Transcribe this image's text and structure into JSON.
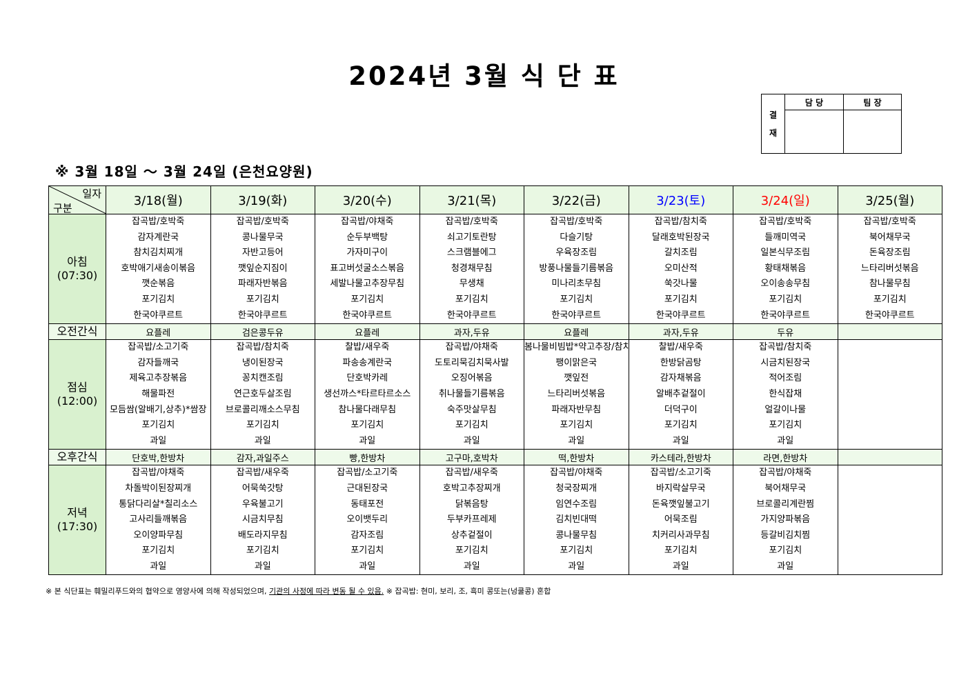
{
  "title": "2024년 3월 식 단 표",
  "approval": {
    "label": [
      "결",
      "재"
    ],
    "headers": [
      "담 당",
      "팀 장"
    ]
  },
  "subtitle": "※ 3월 18일 ～ 3월 24일 (은천요양원)",
  "corner": {
    "top": "일자",
    "bottom": "구분"
  },
  "colors": {
    "saturday": "#0000ff",
    "sunday": "#ff0000",
    "header_bg": "#e9f8e3",
    "label_bg": "#d9f1cf"
  },
  "days": [
    {
      "label": "3/18(월)",
      "type": "weekday"
    },
    {
      "label": "3/19(화)",
      "type": "weekday"
    },
    {
      "label": "3/20(수)",
      "type": "weekday"
    },
    {
      "label": "3/21(목)",
      "type": "weekday"
    },
    {
      "label": "3/22(금)",
      "type": "weekday"
    },
    {
      "label": "3/23(토)",
      "type": "saturday"
    },
    {
      "label": "3/24(일)",
      "type": "sunday"
    },
    {
      "label": "3/25(월)",
      "type": "weekday"
    }
  ],
  "meals": [
    {
      "label": "아침",
      "time": "(07:30)",
      "kind": "meal",
      "menus": [
        [
          "잡곡밥/호박죽",
          "감자계란국",
          "참치김치찌개",
          "호박애기새송이볶음",
          "깻순볶음",
          "포기김치",
          "한국야쿠르트"
        ],
        [
          "잡곡밥/호박죽",
          "콩나물무국",
          "자반고등어",
          "깻잎순지짐이",
          "파래자반볶음",
          "포기김치",
          "한국야쿠르트"
        ],
        [
          "잡곡밥/야채죽",
          "순두부백탕",
          "가자미구이",
          "표고버섯굴소스볶음",
          "세발나물고추장무침",
          "포기김치",
          "한국야쿠르트"
        ],
        [
          "잡곡밥/호박죽",
          "쇠고기토란탕",
          "스크램블에그",
          "청경채무침",
          "무생채",
          "포기김치",
          "한국야쿠르트"
        ],
        [
          "잡곡밥/호박죽",
          "다슬기탕",
          "우육장조림",
          "방풍나물들기름볶음",
          "미나리초무침",
          "포기김치",
          "한국야쿠르트"
        ],
        [
          "잡곡밥/참치죽",
          "달래호박된장국",
          "갈치조림",
          "오미산적",
          "쑥갓나물",
          "포기김치",
          "한국야쿠르트"
        ],
        [
          "잡곡밥/호박죽",
          "들깨미역국",
          "일본식무조림",
          "황태채볶음",
          "오이송송무침",
          "포기김치",
          "한국야쿠르트"
        ],
        [
          "잡곡밥/호박죽",
          "북어채무국",
          "돈육장조림",
          "느타리버섯볶음",
          "참나물무침",
          "포기김치",
          "한국야쿠르트"
        ]
      ]
    },
    {
      "label": "오전간식",
      "kind": "snack",
      "menus": [
        "요플레",
        "검은콩두유",
        "요플레",
        "과자,두유",
        "요플레",
        "과자,두유",
        "두유",
        ""
      ]
    },
    {
      "label": "점심",
      "time": "(12:00)",
      "kind": "meal",
      "menus": [
        [
          "잡곡밥/소고기죽",
          "감자들깨국",
          "제육고추장볶음",
          "해물파전",
          "모듬쌈(알배기,상추)*쌈장",
          "포기김치",
          "과일"
        ],
        [
          "잡곡밥/참치죽",
          "냉이된장국",
          "꽁치캔조림",
          "연근호두살조림",
          "브로콜리깨소스무침",
          "포기김치",
          "과일"
        ],
        [
          "찰밥/새우죽",
          "파송송계란국",
          "단호박카레",
          "생선까스*타르타르소스",
          "참나물다래무침",
          "포기김치",
          "과일"
        ],
        [
          "잡곡밥/야채죽",
          "도토리묵김치묵사발",
          "오징어볶음",
          "취나물들기름볶음",
          "숙주맛살무침",
          "포기김치",
          "과일"
        ],
        [
          "봄나물비빔밥*약고추장/참치죽",
          "팽이맑은국",
          "깻잎전",
          "느타리버섯볶음",
          "파래자반무침",
          "포기김치",
          "과일"
        ],
        [
          "찰밥/새우죽",
          "한방닭곰탕",
          "감자채볶음",
          "알배추겉절이",
          "더덕구이",
          "포기김치",
          "과일"
        ],
        [
          "잡곡밥/참치죽",
          "시금치된장국",
          "적어조림",
          "한식잡채",
          "얼갈이나물",
          "포기김치",
          "과일"
        ],
        []
      ]
    },
    {
      "label": "오후간식",
      "kind": "snack",
      "menus": [
        "단호박,한방차",
        "감자,과일주스",
        "빵,한방차",
        "고구마,호박차",
        "떡,한방차",
        "카스테라,한방차",
        "라면,한방차",
        ""
      ]
    },
    {
      "label": "저녁",
      "time": "(17:30)",
      "kind": "meal",
      "menus": [
        [
          "잡곡밥/야채죽",
          "차돌박이된장찌개",
          "통닭다리살*칠리소스",
          "고사리들깨볶음",
          "오이양파무침",
          "포기김치",
          "과일"
        ],
        [
          "잡곡밥/새우죽",
          "어묵쑥갓탕",
          "우육불고기",
          "시금치무침",
          "배도라지무침",
          "포기김치",
          "과일"
        ],
        [
          "잡곡밥/소고기죽",
          "근대된장국",
          "동태포전",
          "오이뱃두리",
          "감자조림",
          "포기김치",
          "과일"
        ],
        [
          "잡곡밥/새우죽",
          "호박고추장찌개",
          "닭볶음탕",
          "두부카프레제",
          "상추겉절이",
          "포기김치",
          "과일"
        ],
        [
          "잡곡밥/야채죽",
          "청국장찌개",
          "임연수조림",
          "김치빈대떡",
          "콩나물무침",
          "포기김치",
          "과일"
        ],
        [
          "잡곡밥/소고기죽",
          "바지락살무국",
          "돈육깻잎불고기",
          "어묵조림",
          "치커리사과무침",
          "포기김치",
          "과일"
        ],
        [
          "잡곡밥/야채죽",
          "북어채무국",
          "브로콜리계란찜",
          "가지양파볶음",
          "등갈비김치찜",
          "포기김치",
          "과일"
        ],
        []
      ]
    }
  ],
  "footnote": {
    "part1": "※ 본 식단표는 훼밀리푸드와의 협약으로 영양사에 의해 작성되었으며, ",
    "part2": "기관의 사정에 따라 변동 될 수 있음.",
    "part3": " ※ 잡곡밥: 현미, 보리, 조, 흑미 콩또는(넝쿨콩) 혼합"
  }
}
